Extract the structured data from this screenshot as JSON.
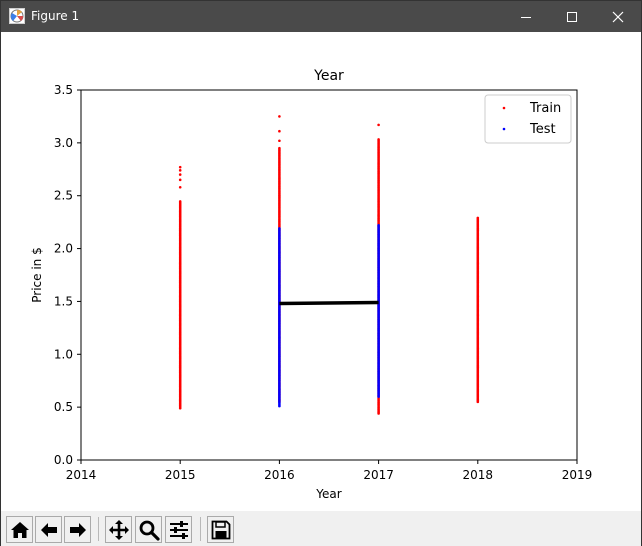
{
  "window": {
    "title": "Figure 1"
  },
  "icons": {
    "app": "matplotlib-figure-icon",
    "minimize": "minimize-icon",
    "maximize": "maximize-icon",
    "close": "close-icon",
    "home": "home-icon",
    "back": "arrow-left-icon",
    "forward": "arrow-right-icon",
    "pan": "move-arrows-icon",
    "zoom": "magnifier-icon",
    "configure": "sliders-icon",
    "save": "floppy-disk-icon"
  },
  "colors": {
    "train": "#ff0000",
    "test": "#0000ff",
    "fit_line": "#000000"
  },
  "chart_data": {
    "type": "scatter",
    "title": "Year",
    "xlabel": "Year",
    "ylabel": "Price in $",
    "xlim": [
      2014,
      2019
    ],
    "ylim": [
      0.0,
      3.5
    ],
    "xticks": [
      "2014",
      "2015",
      "2016",
      "2017",
      "2018",
      "2019"
    ],
    "yticks": [
      "0.0",
      "0.5",
      "1.0",
      "1.5",
      "2.0",
      "2.5",
      "3.0",
      "3.5"
    ],
    "legend_position": "top-right",
    "grid": false,
    "series": [
      {
        "name": "Train",
        "kind": "scatter",
        "color": "#ff0000",
        "points": [
          {
            "x": 2015,
            "y_min": 0.49,
            "y_max": 2.45,
            "outliers": [
              2.58,
              2.65,
              2.7,
              2.74,
              2.77
            ]
          },
          {
            "x": 2016,
            "y_min": 0.55,
            "y_max": 2.95,
            "outliers": [
              3.02,
              3.11,
              3.25
            ]
          },
          {
            "x": 2017,
            "y_min": 0.44,
            "y_max": 3.04,
            "outliers": [
              3.17
            ]
          },
          {
            "x": 2018,
            "y_min": 0.55,
            "y_max": 2.3,
            "outliers": []
          }
        ]
      },
      {
        "name": "Test",
        "kind": "scatter",
        "color": "#0000ff",
        "points": [
          {
            "x": 2016,
            "y_min": 0.51,
            "y_max": 2.2,
            "outliers": []
          },
          {
            "x": 2017,
            "y_min": 0.6,
            "y_max": 2.22,
            "outliers": []
          }
        ]
      },
      {
        "kind": "line",
        "color": "#000000",
        "points": [
          {
            "x": 2016,
            "y": 1.48
          },
          {
            "x": 2017,
            "y": 1.49
          }
        ]
      }
    ]
  }
}
